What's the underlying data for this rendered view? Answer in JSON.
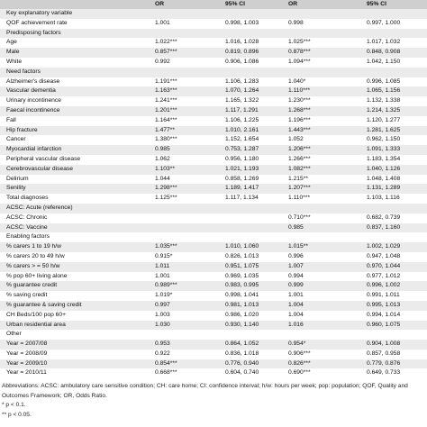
{
  "header": {
    "col0": "",
    "col1": "OR",
    "col2": "95% CI",
    "col3": "OR",
    "col4": "95% CI"
  },
  "rows": [
    {
      "type": "section",
      "label": "Key explanatory variable"
    },
    {
      "type": "data",
      "label": "QOF achievement rate",
      "or1": "1.001",
      "ci1": "0.998, 1.003",
      "or2": "0.998",
      "ci2": "0.997, 1.000"
    },
    {
      "type": "section",
      "label": "Predisposing factors"
    },
    {
      "type": "data",
      "label": "Age",
      "or1": "1.022***",
      "ci1": "1.016, 1.028",
      "or2": "1.025***",
      "ci2": "1.017, 1.032"
    },
    {
      "type": "data",
      "label": "Male",
      "or1": "0.857***",
      "ci1": "0.819, 0.896",
      "or2": "0.878***",
      "ci2": "0.848, 0.908"
    },
    {
      "type": "data",
      "label": "White",
      "or1": "0.992",
      "ci1": "0.906, 1.086",
      "or2": "1.094***",
      "ci2": "1.042, 1.150"
    },
    {
      "type": "section",
      "label": "Need factors"
    },
    {
      "type": "data",
      "label": "Alzheimer's disease",
      "or1": "1.191***",
      "ci1": "1.106, 1.283",
      "or2": "1.040*",
      "ci2": "0.996, 1.085"
    },
    {
      "type": "data",
      "label": "Vascular dementia",
      "or1": "1.163***",
      "ci1": "1.070, 1.264",
      "or2": "1.110***",
      "ci2": "1.065, 1.156"
    },
    {
      "type": "data",
      "label": "Urinary incontinence",
      "or1": "1.241***",
      "ci1": "1.165, 1.322",
      "or2": "1.230***",
      "ci2": "1.132, 1.338"
    },
    {
      "type": "data",
      "label": "Faecal incontinence",
      "or1": "1.201***",
      "ci1": "1.117, 1.291",
      "or2": "1.268***",
      "ci2": "1.214, 1.325"
    },
    {
      "type": "data",
      "label": "Fall",
      "or1": "1.164***",
      "ci1": "1.106, 1.225",
      "or2": "1.196***",
      "ci2": "1.120, 1.277"
    },
    {
      "type": "data",
      "label": "Hip fracture",
      "or1": "1.477**",
      "ci1": "1.010, 2.161",
      "or2": "1.443***",
      "ci2": "1.281, 1.625"
    },
    {
      "type": "data",
      "label": "Cancer",
      "or1": "1.380***",
      "ci1": "1.152, 1.654",
      "or2": "1.052",
      "ci2": "0.962, 1.150"
    },
    {
      "type": "data",
      "label": "Myocardial infarction",
      "or1": "0.985",
      "ci1": "0.753, 1.287",
      "or2": "1.206***",
      "ci2": "1.091, 1.333"
    },
    {
      "type": "data",
      "label": "Peripheral vascular disease",
      "or1": "1.062",
      "ci1": "0.956, 1.180",
      "or2": "1.266***",
      "ci2": "1.183, 1.354"
    },
    {
      "type": "data",
      "label": "Cerebrovascular disease",
      "or1": "1.103**",
      "ci1": "1.021, 1.193",
      "or2": "1.082***",
      "ci2": "1.040, 1.126"
    },
    {
      "type": "data",
      "label": "Delirium",
      "or1": "1.044",
      "ci1": "0.858, 1.269",
      "or2": "1.215**",
      "ci2": "1.048, 1.408"
    },
    {
      "type": "data",
      "label": "Senility",
      "or1": "1.298***",
      "ci1": "1.189, 1.417",
      "or2": "1.207***",
      "ci2": "1.131, 1.289"
    },
    {
      "type": "data",
      "label": "Total diagnoses",
      "or1": "1.125***",
      "ci1": "1.117, 1.134",
      "or2": "1.110***",
      "ci2": "1.103, 1.116"
    },
    {
      "type": "data",
      "label": "ACSC: Acute (reference)",
      "or1": "",
      "ci1": "",
      "or2": "",
      "ci2": ""
    },
    {
      "type": "data",
      "label": "ACSC: Chronic",
      "or1": "",
      "ci1": "",
      "or2": "0.710***",
      "ci2": "0.682, 0.739"
    },
    {
      "type": "data",
      "label": "ACSC: Vaccine",
      "or1": "",
      "ci1": "",
      "or2": "0.985",
      "ci2": "0.837, 1.160"
    },
    {
      "type": "section",
      "label": "Enabling factors"
    },
    {
      "type": "data",
      "label": "% carers 1 to 19 h/w",
      "or1": "1.035***",
      "ci1": "1.010, 1.060",
      "or2": "1.015**",
      "ci2": "1.002, 1.029"
    },
    {
      "type": "data",
      "label": "% carers 20 to 49 h/w",
      "or1": "0.915*",
      "ci1": "0.826, 1.013",
      "or2": "0.996",
      "ci2": "0.947, 1.048"
    },
    {
      "type": "data",
      "label": "% carers > = 50 h/w",
      "or1": "1.011",
      "ci1": "0.951, 1.075",
      "or2": "1.007",
      "ci2": "0.970, 1.044"
    },
    {
      "type": "data",
      "label": "% pop 60+ living alone",
      "or1": "1.001",
      "ci1": "0.969, 1.035",
      "or2": "0.994",
      "ci2": "0.977, 1.012"
    },
    {
      "type": "data",
      "label": "% guarantee credit",
      "or1": "0.989***",
      "ci1": "0.983, 0.995",
      "or2": "0.999",
      "ci2": "0.996, 1.002"
    },
    {
      "type": "data",
      "label": "% saving credit",
      "or1": "1.019*",
      "ci1": "0.998, 1.041",
      "or2": "1.001",
      "ci2": "0.991, 1.011"
    },
    {
      "type": "data",
      "label": "% guarantee & saving credit",
      "or1": "0.997",
      "ci1": "0.981, 1.013",
      "or2": "1.004",
      "ci2": "0.995, 1.013"
    },
    {
      "type": "data",
      "label": "CH Beds/100 pop 60+",
      "or1": "1.003",
      "ci1": "0.986, 1.020",
      "or2": "1.004",
      "ci2": "0.994, 1.014"
    },
    {
      "type": "data",
      "label": "Urban residential area",
      "or1": "1.030",
      "ci1": "0.930, 1.140",
      "or2": "1.016",
      "ci2": "0.960, 1.075"
    },
    {
      "type": "section",
      "label": "Other"
    },
    {
      "type": "data",
      "label": "Year = 2007/08",
      "or1": "0.953",
      "ci1": "0.864, 1.052",
      "or2": "0.954*",
      "ci2": "0.904, 1.008"
    },
    {
      "type": "data",
      "label": "Year = 2008/09",
      "or1": "0.922",
      "ci1": "0.836, 1.018",
      "or2": "0.906***",
      "ci2": "0.857, 0.958"
    },
    {
      "type": "data",
      "label": "Year = 2009/10",
      "or1": "0.854***",
      "ci1": "0.776, 0.940",
      "or2": "0.826***",
      "ci2": "0.779, 0.876"
    },
    {
      "type": "data",
      "label": "Year = 2010/11",
      "or1": "0.668***",
      "ci1": "0.604, 0.740",
      "or2": "0.690***",
      "ci2": "0.649, 0.733"
    }
  ],
  "footnotes": [
    "Abbreviations: ACSC: ambulatory care sensitive condition; CH: care home; CI: confidence interval; h/w: hours per week; pop: population; QOF, Quality and Outcomes Framework; OR, Odds Ratio.",
    "* p < 0.1.",
    "** p < 0.05."
  ]
}
